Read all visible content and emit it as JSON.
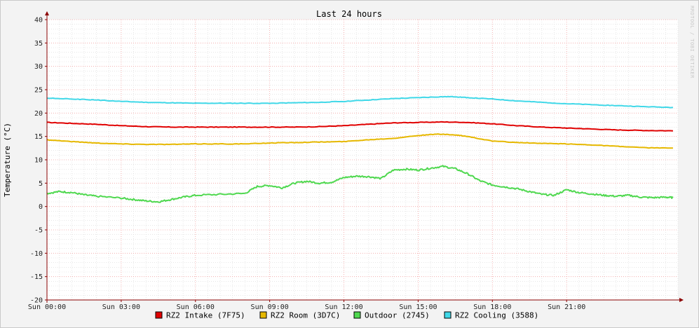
{
  "colors": {
    "background": "#f3f3f3",
    "plot_background": "#ffffff",
    "minor_grid": "#d8d8d8",
    "major_grid": "#f2a0a0",
    "axis": "#8b0000"
  },
  "chart_data": {
    "type": "line",
    "title": "Last 24 hours",
    "ylabel": "Temperature (°C)",
    "watermark": "RRDTOOL / TOBI OETIKER",
    "ylim": [
      -20,
      40
    ],
    "y_ticks": [
      -20,
      -15,
      -10,
      -5,
      0,
      5,
      10,
      15,
      20,
      25,
      30,
      35,
      40
    ],
    "x_range_hours": [
      0,
      25.5
    ],
    "x_ticks": [
      {
        "hour": 0,
        "label": "Sun 00:00"
      },
      {
        "hour": 3,
        "label": "Sun 03:00"
      },
      {
        "hour": 6,
        "label": "Sun 06:00"
      },
      {
        "hour": 9,
        "label": "Sun 09:00"
      },
      {
        "hour": 12,
        "label": "Sun 12:00"
      },
      {
        "hour": 15,
        "label": "Sun 15:00"
      },
      {
        "hour": 18,
        "label": "Sun 18:00"
      },
      {
        "hour": 21,
        "label": "Sun 21:00"
      }
    ],
    "grid": true,
    "legend_position": "bottom",
    "series": [
      {
        "name": "RZ2 Intake (7F75)",
        "color": "#e00000",
        "x": [
          0,
          1,
          2,
          3,
          4,
          5,
          6,
          7,
          8,
          9,
          10,
          11,
          12,
          13,
          14,
          15,
          16,
          17,
          18,
          19,
          20,
          21,
          22,
          23,
          24,
          25.3
        ],
        "y": [
          18.0,
          17.8,
          17.6,
          17.3,
          17.1,
          17.0,
          17.0,
          17.0,
          17.0,
          17.0,
          17.0,
          17.1,
          17.3,
          17.6,
          17.9,
          18.0,
          18.1,
          18.0,
          17.7,
          17.3,
          17.0,
          16.8,
          16.6,
          16.4,
          16.3,
          16.2
        ]
      },
      {
        "name": "RZ2 Room (3D7C)",
        "color": "#e6b800",
        "x": [
          0,
          1,
          2,
          3,
          4,
          5,
          6,
          7,
          8,
          9,
          10,
          11,
          12,
          13,
          14,
          15,
          15.8,
          16.5,
          17,
          18,
          19,
          20,
          21,
          22,
          23,
          24,
          25.3
        ],
        "y": [
          14.3,
          13.9,
          13.6,
          13.4,
          13.3,
          13.3,
          13.4,
          13.4,
          13.4,
          13.6,
          13.7,
          13.8,
          13.9,
          14.3,
          14.6,
          15.2,
          15.5,
          15.3,
          15.0,
          14.0,
          13.7,
          13.5,
          13.4,
          13.2,
          12.9,
          12.6,
          12.5
        ]
      },
      {
        "name": "Outdoor (2745)",
        "color": "#4fd84f",
        "x": [
          0,
          0.5,
          1,
          1.5,
          2,
          3,
          3.5,
          4,
          4.5,
          5,
          5.5,
          6,
          7,
          8,
          8.5,
          9,
          9.5,
          10,
          10.5,
          11,
          11.5,
          12,
          12.5,
          13,
          13.5,
          14,
          14.5,
          15,
          15.5,
          16,
          16.5,
          17,
          17.5,
          18,
          18.5,
          19,
          19.5,
          20,
          20.5,
          21,
          21.5,
          22,
          22.5,
          23,
          23.5,
          24,
          24.5,
          25,
          25.3
        ],
        "y": [
          2.8,
          3.2,
          3.0,
          2.5,
          2.2,
          1.8,
          1.5,
          1.2,
          1.0,
          1.5,
          2.0,
          2.4,
          2.6,
          2.8,
          4.3,
          4.5,
          4.0,
          5.0,
          5.4,
          5.0,
          5.2,
          6.2,
          6.5,
          6.4,
          6.0,
          7.8,
          8.0,
          7.8,
          8.2,
          8.6,
          8.1,
          7.0,
          5.5,
          4.6,
          4.2,
          3.8,
          3.2,
          2.6,
          2.4,
          3.6,
          3.0,
          2.7,
          2.4,
          2.2,
          2.4,
          2.0,
          1.9,
          2.0,
          1.9
        ]
      },
      {
        "name": "RZ2 Cooling (3588)",
        "color": "#40d8e8",
        "x": [
          0,
          1,
          2,
          3,
          4,
          5,
          6,
          7,
          8,
          9,
          10,
          11,
          12,
          13,
          14,
          15,
          16,
          16.5,
          17,
          18,
          19,
          20,
          21,
          22,
          23,
          24,
          25.3
        ],
        "y": [
          23.2,
          23.0,
          22.8,
          22.5,
          22.3,
          22.2,
          22.1,
          22.1,
          22.1,
          22.1,
          22.2,
          22.3,
          22.5,
          22.8,
          23.1,
          23.3,
          23.5,
          23.5,
          23.3,
          23.0,
          22.6,
          22.3,
          22.0,
          21.8,
          21.6,
          21.4,
          21.2
        ]
      }
    ]
  }
}
